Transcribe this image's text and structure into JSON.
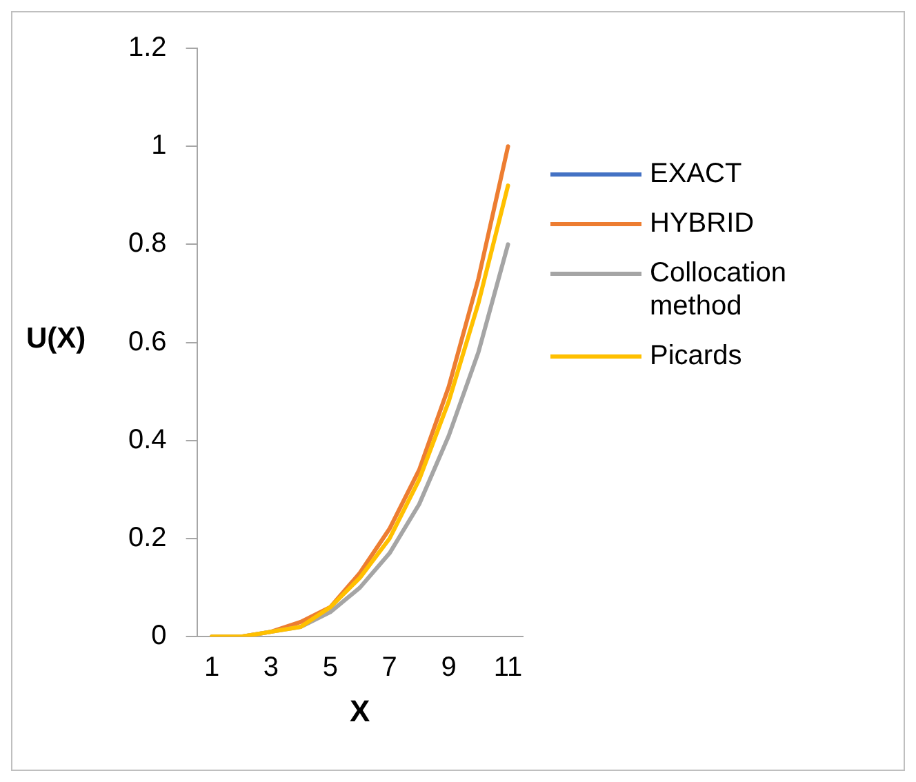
{
  "chart_data": {
    "type": "line",
    "xlabel": "X",
    "ylabel": "U(X)",
    "categories": [
      "1",
      null,
      "3",
      null,
      "5",
      null,
      "7",
      null,
      "9",
      null,
      "11"
    ],
    "series": [
      {
        "name": "EXACT",
        "color": "#4472c4",
        "values": [
          null,
          null,
          null,
          null,
          null,
          null,
          null,
          null,
          null,
          null,
          null
        ]
      },
      {
        "name": "HYBRID",
        "color": "#ed7d31",
        "values": [
          0,
          0,
          0.01,
          0.03,
          0.06,
          0.13,
          0.22,
          0.34,
          0.51,
          0.73,
          1
        ]
      },
      {
        "name": "Collocation method",
        "color": "#a5a5a5",
        "values": [
          0,
          0,
          0.01,
          0.02,
          0.05,
          0.1,
          0.17,
          0.27,
          0.41,
          0.58,
          0.8
        ]
      },
      {
        "name": "Picards",
        "color": "#ffc000",
        "values": [
          0,
          0,
          0.01,
          0.02,
          0.06,
          0.12,
          0.2,
          0.32,
          0.48,
          0.68,
          0.92
        ]
      }
    ],
    "ylim": [
      0,
      1.2
    ],
    "yticks": [
      0,
      0.2,
      0.4,
      0.6,
      0.8,
      1,
      1.2
    ],
    "grid": false,
    "legend": "right",
    "marker": "none",
    "line_style": "solid"
  }
}
